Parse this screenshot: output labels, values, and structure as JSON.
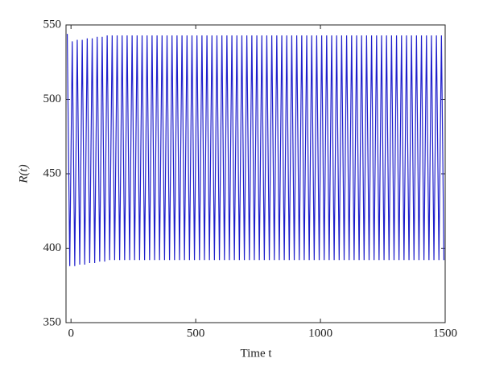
{
  "chart_data": {
    "type": "line",
    "xlabel": "Time t",
    "ylabel": "R(t)",
    "xlim": [
      -20,
      1500
    ],
    "xticks": [
      0,
      500,
      1000,
      1500
    ],
    "ylim": [
      350,
      550
    ],
    "yticks": [
      350,
      400,
      450,
      500,
      550
    ],
    "series": [
      {
        "name": "R(t)",
        "color": "#1f1fcc",
        "x": [
          -15,
          -5,
          5,
          15,
          25,
          35,
          45,
          55,
          65,
          75,
          85,
          95,
          105,
          115,
          125,
          135,
          145,
          155,
          165,
          175,
          185,
          195,
          205,
          215,
          225,
          235,
          245,
          255,
          265,
          275,
          285,
          295,
          305,
          315,
          325,
          335,
          345,
          355,
          365,
          375,
          385,
          395,
          405,
          415,
          425,
          435,
          445,
          455,
          465,
          475,
          485,
          495,
          505,
          515,
          525,
          535,
          545,
          555,
          565,
          575,
          585,
          595,
          605,
          615,
          625,
          635,
          645,
          655,
          665,
          675,
          685,
          695,
          705,
          715,
          725,
          735,
          745,
          755,
          765,
          775,
          785,
          795,
          805,
          815,
          825,
          835,
          845,
          855,
          865,
          875,
          885,
          895,
          905,
          915,
          925,
          935,
          945,
          955,
          965,
          975,
          985,
          995,
          1005,
          1015,
          1025,
          1035,
          1045,
          1055,
          1065,
          1075,
          1085,
          1095,
          1105,
          1115,
          1125,
          1135,
          1145,
          1155,
          1165,
          1175,
          1185,
          1195,
          1205,
          1215,
          1225,
          1235,
          1245,
          1255,
          1265,
          1275,
          1285,
          1295,
          1305,
          1315,
          1325,
          1335,
          1345,
          1355,
          1365,
          1375,
          1385,
          1395,
          1405,
          1415,
          1425,
          1435,
          1445,
          1455,
          1465,
          1475,
          1485,
          1495
        ],
        "values": [
          544,
          388,
          539,
          388,
          540,
          389,
          540,
          389,
          541,
          390,
          541,
          390,
          542,
          391,
          542,
          391,
          543,
          392,
          543,
          392,
          543,
          392,
          543,
          392,
          543,
          392,
          543,
          392,
          543,
          392,
          543,
          392,
          543,
          392,
          543,
          392,
          543,
          392,
          543,
          392,
          543,
          392,
          543,
          392,
          543,
          392,
          543,
          392,
          543,
          392,
          543,
          392,
          543,
          392,
          543,
          392,
          543,
          392,
          543,
          392,
          543,
          392,
          543,
          392,
          543,
          392,
          543,
          392,
          543,
          392,
          543,
          392,
          543,
          392,
          543,
          392,
          543,
          392,
          543,
          392,
          543,
          392,
          543,
          392,
          543,
          392,
          543,
          392,
          543,
          392,
          543,
          392,
          543,
          392,
          543,
          392,
          543,
          392,
          543,
          392,
          543,
          392,
          543,
          392,
          543,
          392,
          543,
          392,
          543,
          392,
          543,
          392,
          543,
          392,
          543,
          392,
          543,
          392,
          543,
          392,
          543,
          392,
          543,
          392,
          543,
          392,
          543,
          392,
          543,
          392,
          543,
          392,
          543,
          392,
          543,
          392,
          543,
          392,
          543,
          392,
          543,
          392,
          543,
          392,
          543,
          392,
          543,
          392,
          543,
          392,
          543,
          392
        ]
      }
    ]
  }
}
